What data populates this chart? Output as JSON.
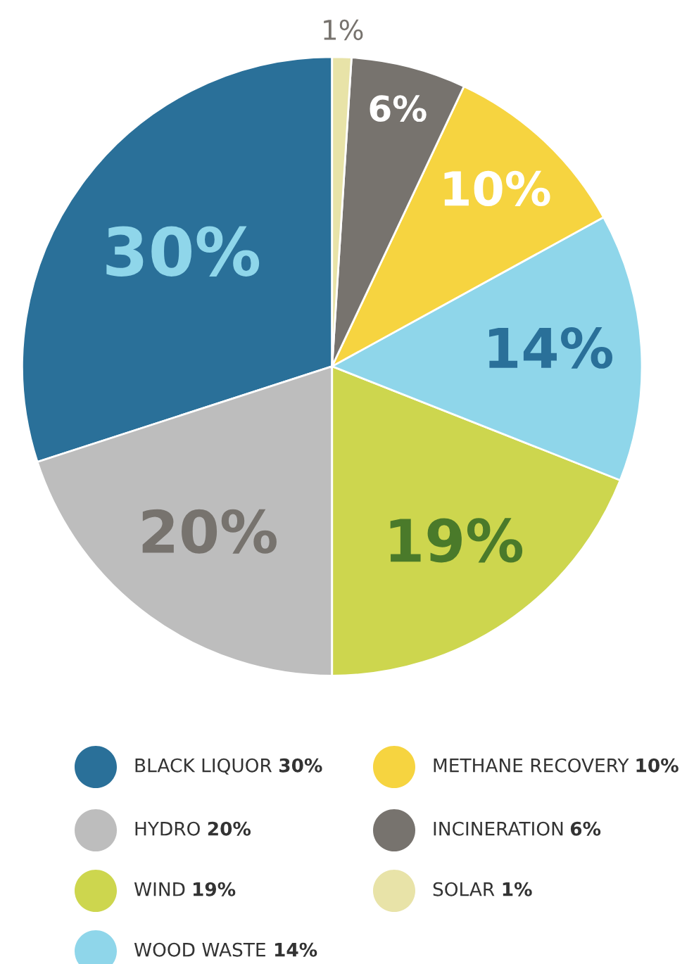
{
  "chart_data": {
    "type": "pie",
    "categories": [
      "BLACK LIQUOR",
      "HYDRO",
      "WIND",
      "WOOD WASTE",
      "METHANE RECOVERY",
      "INCINERATION",
      "SOLAR"
    ],
    "values": [
      30,
      20,
      19,
      14,
      10,
      6,
      1
    ],
    "value_labels": [
      "30%",
      "20%",
      "19%",
      "14%",
      "10%",
      "6%",
      "1%"
    ],
    "colors": [
      "#2a7099",
      "#bdbdbd",
      "#cdd64e",
      "#8fd6ea",
      "#f6d440",
      "#77736e",
      "#e8e3a8"
    ],
    "legend": "bottom"
  }
}
